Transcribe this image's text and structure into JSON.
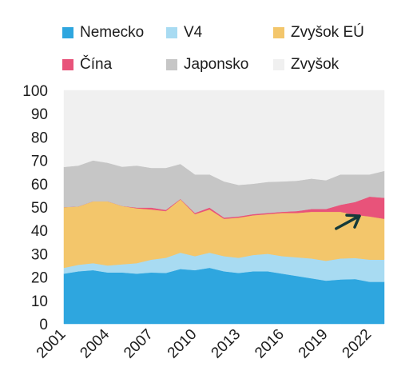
{
  "chart_data": {
    "type": "area",
    "stacked": true,
    "x": [
      2001,
      2002,
      2003,
      2004,
      2005,
      2006,
      2007,
      2008,
      2009,
      2010,
      2011,
      2012,
      2013,
      2014,
      2015,
      2016,
      2017,
      2018,
      2019,
      2020,
      2021,
      2022,
      2023
    ],
    "x_ticks": [
      "2001",
      "2004",
      "2007",
      "2010",
      "2013",
      "2016",
      "2019",
      "2022"
    ],
    "y_ticks": [
      "0",
      "10",
      "20",
      "30",
      "40",
      "50",
      "60",
      "70",
      "80",
      "90",
      "100"
    ],
    "ylim": [
      0,
      100
    ],
    "grid": false,
    "legend_position": "top",
    "series": [
      {
        "name": "Nemecko",
        "color": "#2ea6df",
        "values": [
          21.5,
          22.5,
          23,
          22,
          22,
          21.5,
          22,
          21.8,
          23.5,
          23,
          24,
          22.5,
          21.8,
          22.5,
          22.5,
          21.5,
          20.5,
          19.5,
          18.5,
          19,
          19.2,
          18,
          18
        ]
      },
      {
        "name": "V4",
        "color": "#a8dbf2",
        "values": [
          2.5,
          2.8,
          3,
          3,
          3.5,
          4.5,
          5.5,
          6.5,
          7,
          6,
          6.5,
          6.5,
          6.5,
          7,
          7.5,
          7.5,
          8,
          8.5,
          8.5,
          9,
          9,
          9.5,
          9.5
        ]
      },
      {
        "name": "Zvyšok EÚ",
        "color": "#f3c66b",
        "values": [
          26,
          25,
          26.5,
          27.5,
          25,
          23.5,
          21.5,
          20,
          22.8,
          18,
          18.5,
          16,
          17.2,
          17,
          17,
          18.5,
          19,
          20,
          21,
          20,
          18.5,
          18.5,
          17.5
        ]
      },
      {
        "name": "Čína",
        "color": "#e8537a",
        "values": [
          0,
          0,
          0,
          0,
          0,
          0.3,
          0.8,
          0.5,
          0.2,
          0.5,
          0.8,
          0.5,
          0.5,
          0.5,
          0.5,
          0.5,
          0.8,
          1.2,
          1.2,
          3,
          5.5,
          8.5,
          9
        ]
      },
      {
        "name": "Japonsko",
        "color": "#c6c6c6",
        "values": [
          17.2,
          17.5,
          17.5,
          16.5,
          16.8,
          18,
          17,
          18,
          15,
          16.5,
          14.2,
          15.5,
          13.5,
          13,
          13.3,
          13,
          13,
          13,
          12.3,
          13,
          11.8,
          9.5,
          11.5
        ]
      },
      {
        "name": "Zvyšok",
        "color": "#f0f0f0",
        "values": [
          32.8,
          32.2,
          30,
          31,
          32.7,
          32.2,
          33.2,
          33.2,
          31.5,
          36,
          36,
          39,
          40.5,
          40,
          39.2,
          39,
          38.7,
          37.8,
          38.5,
          36,
          36,
          36,
          34.5
        ]
      }
    ]
  }
}
